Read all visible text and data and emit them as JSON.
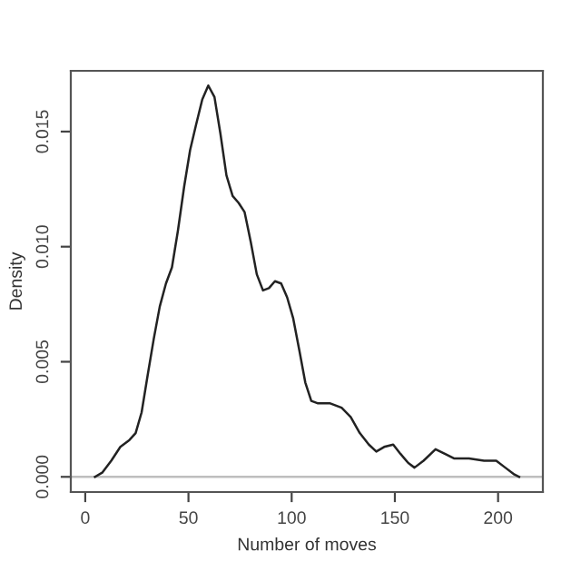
{
  "chart_data": {
    "type": "line",
    "xlabel": "Number of moves",
    "ylabel": "Density",
    "x": [
      4.7,
      8.2,
      12.6,
      17,
      21.4,
      24.4,
      27.3,
      30.2,
      33.2,
      36.1,
      39.1,
      42,
      44.9,
      47.9,
      50.8,
      53.7,
      56.7,
      59.6,
      62.6,
      65.5,
      68.4,
      71.4,
      74.3,
      77.2,
      80.2,
      83.1,
      86.1,
      89,
      91.9,
      94.9,
      97.8,
      100.7,
      103.7,
      106.6,
      109.5,
      112.5,
      118.4,
      124.2,
      128.6,
      133,
      137.4,
      141,
      144.8,
      149.2,
      152.7,
      156.5,
      159.5,
      163.9,
      169.7,
      174.2,
      178.6,
      185.9,
      193.2,
      199.1,
      203.5,
      207.9,
      210.2
    ],
    "series": [
      {
        "color": "#222222",
        "values": [
          0,
          0.00018,
          0.0007,
          0.0013,
          0.0016,
          0.0019,
          0.0028,
          0.0044,
          0.006,
          0.0074,
          0.0084,
          0.0091,
          0.0107,
          0.0126,
          0.0142,
          0.0153,
          0.0164,
          0.017,
          0.0165,
          0.0149,
          0.0131,
          0.0122,
          0.0119,
          0.0115,
          0.0102,
          0.0088,
          0.0081,
          0.0082,
          0.0085,
          0.0084,
          0.0078,
          0.0069,
          0.0055,
          0.0041,
          0.0033,
          0.0032,
          0.0032,
          0.003,
          0.0026,
          0.0019,
          0.0014,
          0.0011,
          0.0013,
          0.0014,
          0.001,
          0.0006,
          0.0004,
          0.0007,
          0.0012,
          0.001,
          0.0008,
          0.0008,
          0.0007,
          0.0007,
          0.0004,
          0.0001,
          0
        ]
      }
    ],
    "xlim": [
      -7,
      221.7
    ],
    "ylim": [
      -0.00066,
      0.01764
    ],
    "xticks": [
      0,
      50,
      100,
      150,
      200
    ],
    "yticks": [
      {
        "value": 0,
        "label": "0.000"
      },
      {
        "value": 0.005,
        "label": "0.005"
      },
      {
        "value": 0.01,
        "label": "0.010"
      },
      {
        "value": 0.015,
        "label": "0.015"
      }
    ],
    "ref_lines": [
      {
        "axis": "y",
        "value": 0,
        "color": "#bebebe"
      }
    ],
    "grid": false,
    "legend": false,
    "marker": "none",
    "line_style": "solid"
  }
}
